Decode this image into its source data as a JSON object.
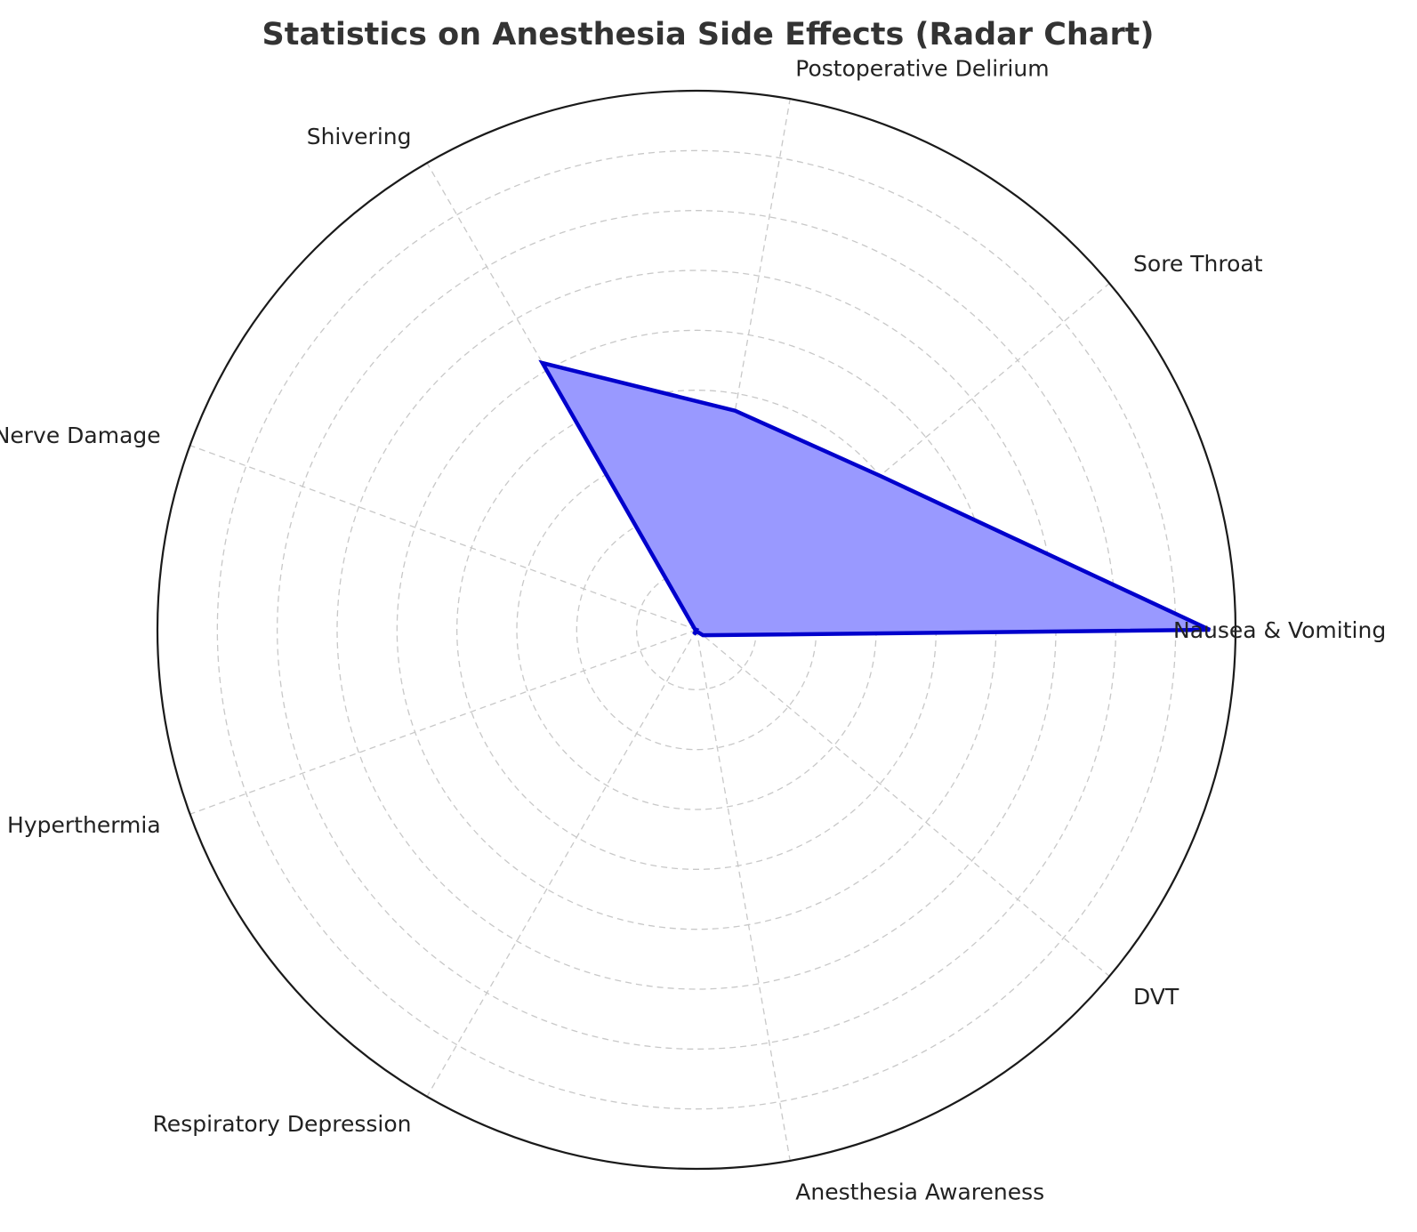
{
  "chart_data": {
    "type": "radar",
    "title": "Statistics on Anesthesia Side Effects (Radar Chart)",
    "categories": [
      "Nausea & Vomiting",
      "Sore Throat",
      "Postoperative Delirium",
      "Shivering",
      "Nerve Damage",
      "Malignant Hyperthermia",
      "Respiratory Depression",
      "Anesthesia Awareness",
      "DVT"
    ],
    "series": [
      {
        "values": [
          30,
          14,
          13,
          18,
          0.1,
          0.002,
          0.3,
          0.1,
          0.5
        ]
      }
    ],
    "rlim": [
      0,
      31.5
    ],
    "r_gridlines": [
      3.5,
      7,
      10.5,
      14,
      17.5,
      21,
      24.5,
      28,
      31.5
    ],
    "radial_tick_labels": false,
    "grid": true,
    "colors": {
      "line": "#0000cc",
      "fill": "#9999ff",
      "grid": "#c8c8c8",
      "outer": "#1a1a1a"
    }
  }
}
